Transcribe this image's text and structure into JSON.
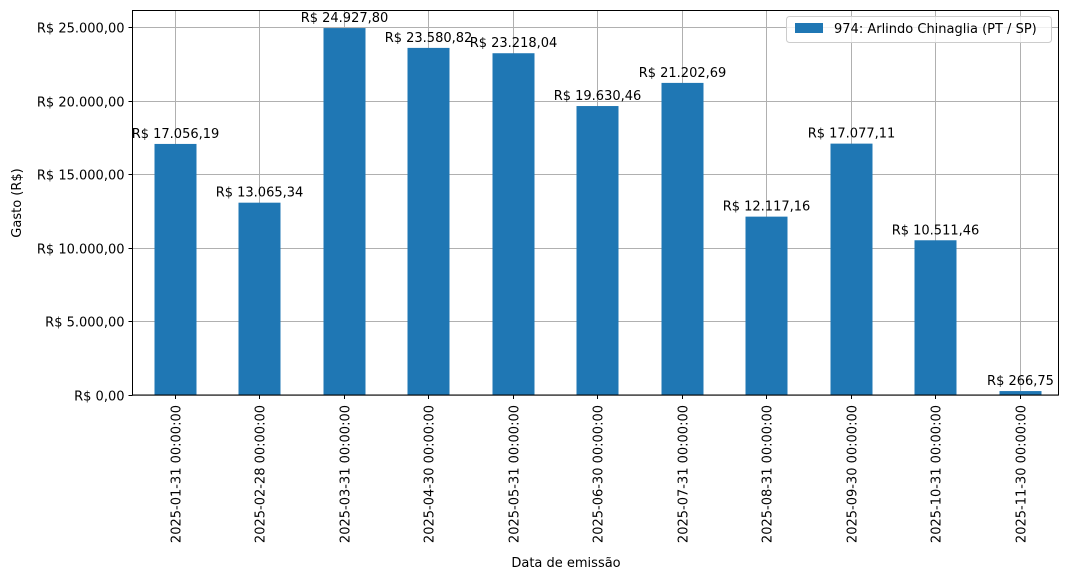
{
  "chart_data": {
    "type": "bar",
    "title": "",
    "xlabel": "Data de emissão",
    "ylabel": "Gasto (R$)",
    "ylim": [
      0,
      26250
    ],
    "grid": true,
    "legend_position": "upper right",
    "series": [
      {
        "name": "974: Arlindo Chinaglia (PT / SP)",
        "color": "#1f77b4",
        "values": [
          17056.19,
          13065.34,
          24927.8,
          23580.82,
          23218.04,
          19630.46,
          21202.69,
          12117.16,
          17077.11,
          10511.46,
          266.75
        ]
      }
    ],
    "categories": [
      "2025-01-31 00:00:00",
      "2025-02-28 00:00:00",
      "2025-03-31 00:00:00",
      "2025-04-30 00:00:00",
      "2025-05-31 00:00:00",
      "2025-06-30 00:00:00",
      "2025-07-31 00:00:00",
      "2025-08-31 00:00:00",
      "2025-09-30 00:00:00",
      "2025-10-31 00:00:00",
      "2025-11-30 00:00:00"
    ],
    "bar_labels": [
      "R$ 17.056,19",
      "R$ 13.065,34",
      "R$ 24.927,80",
      "R$ 23.580,82",
      "R$ 23.218,04",
      "R$ 19.630,46",
      "R$ 21.202,69",
      "R$ 12.117,16",
      "R$ 17.077,11",
      "R$ 10.511,46",
      "R$ 266,75"
    ],
    "yticks": [
      0,
      5000,
      10000,
      15000,
      20000,
      25000
    ],
    "ytick_labels": [
      "R$ 0,00",
      "R$ 5.000,00",
      "R$ 10.000,00",
      "R$ 15.000,00",
      "R$ 20.000,00",
      "R$ 25.000,00"
    ]
  },
  "legend": {
    "label": "974: Arlindo Chinaglia (PT / SP)"
  },
  "axes": {
    "xlabel": "Data de emissão",
    "ylabel": "Gasto (R$)"
  }
}
